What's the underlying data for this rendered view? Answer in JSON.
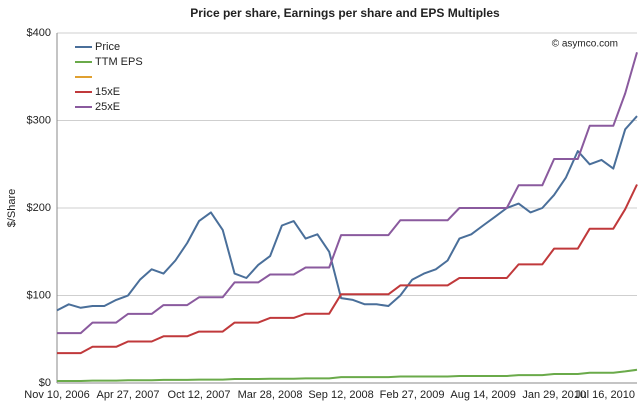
{
  "chart_data": {
    "type": "line",
    "title": "Price per share, Earnings per share and EPS Multiples",
    "y_label": "$/Share",
    "annotation": "© asymco.com",
    "categories": [
      "Nov 10, 2006",
      null,
      null,
      null,
      null,
      null,
      "Apr 27, 2007",
      null,
      null,
      null,
      null,
      null,
      "Oct 12, 2007",
      null,
      null,
      null,
      null,
      null,
      "Mar 28, 2008",
      null,
      null,
      null,
      null,
      null,
      "Sep 12, 2008",
      null,
      null,
      null,
      null,
      null,
      "Feb 27, 2009",
      null,
      null,
      null,
      null,
      null,
      "Aug 14, 2009",
      null,
      null,
      null,
      null,
      null,
      "Jan 29, 2010",
      null,
      null,
      null,
      null,
      null,
      "Jul 16, 2010",
      null
    ],
    "series": [
      {
        "name": "Price",
        "color": "#4a6f9a",
        "values": [
          83,
          90,
          86,
          88,
          88,
          95,
          100,
          118,
          130,
          125,
          140,
          160,
          185,
          195,
          175,
          125,
          120,
          135,
          145,
          180,
          185,
          165,
          170,
          150,
          97,
          95,
          90,
          90,
          88,
          100,
          118,
          125,
          130,
          140,
          165,
          170,
          180,
          190,
          200,
          205,
          195,
          200,
          215,
          235,
          265,
          250,
          255,
          245,
          290,
          305
        ]
      },
      {
        "name": "TTM EPS",
        "color": "#6aaa4a",
        "values": [
          2.28,
          2.28,
          2.28,
          2.76,
          2.76,
          2.76,
          3.16,
          3.16,
          3.16,
          3.56,
          3.56,
          3.56,
          3.92,
          3.92,
          3.92,
          4.6,
          4.6,
          4.6,
          4.96,
          4.96,
          4.96,
          5.28,
          5.28,
          5.28,
          6.76,
          6.76,
          6.76,
          6.76,
          6.76,
          7.44,
          7.44,
          7.44,
          7.44,
          7.44,
          8.0,
          8.0,
          8.0,
          8.0,
          8.0,
          9.04,
          9.04,
          9.04,
          10.24,
          10.24,
          10.24,
          11.76,
          11.76,
          11.76,
          13.24,
          15.12
        ]
      },
      {
        "name": "15xE",
        "color": "#c0393b",
        "values": [
          34.2,
          34.2,
          34.2,
          41.4,
          41.4,
          41.4,
          47.4,
          47.4,
          47.4,
          53.4,
          53.4,
          53.4,
          58.8,
          58.8,
          58.8,
          69,
          69,
          69,
          74.4,
          74.4,
          74.4,
          79.2,
          79.2,
          79.2,
          101.4,
          101.4,
          101.4,
          101.4,
          101.4,
          111.6,
          111.6,
          111.6,
          111.6,
          111.6,
          120,
          120,
          120,
          120,
          120,
          135.6,
          135.6,
          135.6,
          153.6,
          153.6,
          153.6,
          176.4,
          176.4,
          176.4,
          198.6,
          226.8
        ]
      },
      {
        "name": "25xE",
        "color": "#8a5a9e",
        "values": [
          57,
          57,
          57,
          69,
          69,
          69,
          79,
          79,
          79,
          89,
          89,
          89,
          98,
          98,
          98,
          115,
          115,
          115,
          124,
          124,
          124,
          132,
          132,
          132,
          169,
          169,
          169,
          169,
          169,
          186,
          186,
          186,
          186,
          186,
          200,
          200,
          200,
          200,
          200,
          226,
          226,
          226,
          256,
          256,
          256,
          294,
          294,
          294,
          331,
          378
        ]
      }
    ],
    "ylim": [
      0,
      400
    ],
    "yticks": [
      {
        "value": 0,
        "label": "$0"
      },
      {
        "value": 100,
        "label": "$100"
      },
      {
        "value": 200,
        "label": "$200"
      },
      {
        "value": 300,
        "label": "$300"
      },
      {
        "value": 400,
        "label": "$400"
      }
    ],
    "grid": true
  }
}
